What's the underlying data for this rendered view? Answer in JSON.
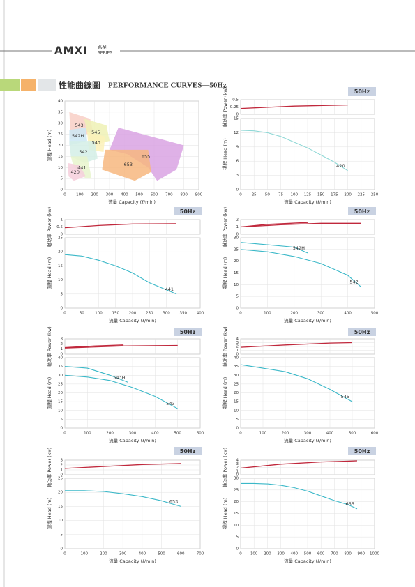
{
  "header": {
    "brand": "AMXI",
    "series_cn": "系列",
    "series_en": "SERIES"
  },
  "section_title": {
    "cn": "性能曲線圖",
    "en": "PERFORMANCE CURVES—50Hz"
  },
  "chart_data": [
    {
      "type": "region",
      "xlabel": "流量 Capacity (ℓ/min)",
      "ylabel": "揚程 Head (m)",
      "xlim": [
        0,
        900
      ],
      "xticks": [
        0,
        100,
        200,
        300,
        400,
        500,
        600,
        700,
        800,
        900
      ],
      "ylim": [
        0,
        40
      ],
      "yticks": [
        0,
        5,
        10,
        15,
        20,
        25,
        30,
        35,
        40
      ],
      "grid": true,
      "regions": [
        {
          "name": "655",
          "color": "#d9a3e3",
          "x": [
            360,
            800,
            750,
            620,
            560,
            420,
            300
          ],
          "y": [
            28,
            20,
            9,
            4,
            10,
            16,
            18
          ]
        },
        {
          "name": "653",
          "color": "#f7b77f",
          "x": [
            270,
            560,
            580,
            470,
            250
          ],
          "y": [
            18,
            18,
            8,
            4,
            9
          ]
        },
        {
          "name": "543H",
          "color": "#f8cfc6",
          "x": [
            30,
            170,
            190,
            40
          ],
          "y": [
            35,
            32,
            26,
            23
          ]
        },
        {
          "name": "545",
          "color": "#eef1b5",
          "x": [
            130,
            280,
            300,
            180,
            150
          ],
          "y": [
            32,
            29,
            22,
            20,
            26
          ]
        },
        {
          "name": "542H",
          "color": "#cde8f5",
          "x": [
            30,
            140,
            150,
            30
          ],
          "y": [
            27,
            28,
            22,
            20
          ]
        },
        {
          "name": "543",
          "color": "#fbf1b8",
          "x": [
            150,
            270,
            260,
            160
          ],
          "y": [
            26,
            24,
            17,
            18
          ]
        },
        {
          "name": "542",
          "color": "#d3efe6",
          "x": [
            30,
            200,
            220,
            130,
            40
          ],
          "y": [
            22,
            22,
            14,
            12,
            15
          ]
        },
        {
          "name": "441",
          "color": "#e8f5cd",
          "x": [
            40,
            150,
            180,
            140,
            60
          ],
          "y": [
            15,
            15,
            5,
            5,
            10
          ]
        },
        {
          "name": "420",
          "color": "#f6cfdc",
          "x": [
            20,
            100,
            140,
            60,
            25
          ],
          "y": [
            12,
            11,
            6,
            4,
            6
          ]
        }
      ]
    },
    {
      "type": "pump",
      "badge": "50Hz",
      "xlabel": "流量 Capacity (ℓ/min)",
      "xlim": [
        0,
        250
      ],
      "xticks": [
        0,
        25,
        50,
        75,
        100,
        125,
        150,
        175,
        200,
        225,
        250
      ],
      "power": {
        "ylabel": "軸功率 Power (kw)",
        "ylim": [
          0,
          0.5
        ],
        "yticks": [
          0,
          0.25,
          0.5
        ],
        "series": [
          {
            "color": "#c0283c",
            "x": [
              0,
              100,
              200
            ],
            "values": [
              0.2,
              0.28,
              0.32
            ]
          }
        ]
      },
      "head": {
        "ylabel": "揚程 Head (m)",
        "ylim": [
          0,
          15
        ],
        "yticks": [
          0,
          3,
          6,
          9,
          12,
          15
        ],
        "series": [
          {
            "name": "420",
            "color": "#8fd8d6",
            "x": [
              0,
              25,
              50,
              75,
              100,
              125,
              150,
              175,
              200
            ],
            "values": [
              12.5,
              12.4,
              12,
              11.2,
              10,
              8.8,
              7.3,
              5.8,
              4
            ]
          }
        ]
      }
    },
    {
      "type": "pump",
      "badge": "50Hz",
      "xlabel": "流量 Capacity (ℓ/min)",
      "xlim": [
        0,
        400
      ],
      "xticks": [
        0,
        50,
        100,
        150,
        200,
        250,
        300,
        350,
        400
      ],
      "power": {
        "ylabel": "軸功率 Power (kw)",
        "ylim": [
          0,
          1
        ],
        "yticks": [
          0,
          0.5,
          1
        ],
        "series": [
          {
            "color": "#c0283c",
            "x": [
              0,
              100,
              200,
              330
            ],
            "values": [
              0.45,
              0.6,
              0.7,
              0.72
            ]
          }
        ]
      },
      "head": {
        "ylabel": "揚程 Head (m)",
        "ylim": [
          0,
          25
        ],
        "yticks": [
          0,
          5,
          10,
          15,
          20,
          25
        ],
        "series": [
          {
            "name": "441",
            "color": "#3bb8c8",
            "x": [
              0,
              50,
              100,
              150,
              200,
              250,
              330
            ],
            "values": [
              19,
              18.5,
              17,
              15,
              12.5,
              9,
              5
            ]
          }
        ]
      }
    },
    {
      "type": "pump",
      "badge": "50Hz",
      "xlabel": "流量 Capacity (ℓ/min)",
      "xlim": [
        0,
        500
      ],
      "xticks": [
        0,
        100,
        200,
        300,
        400,
        500
      ],
      "power": {
        "ylabel": "軸功率 Power (kw)",
        "ylim": [
          0,
          2
        ],
        "yticks": [
          0,
          1,
          2
        ],
        "series": [
          {
            "color": "#c0283c",
            "x": [
              0,
              100,
              250
            ],
            "values": [
              1,
              1.35,
              1.6
            ]
          },
          {
            "color": "#c0283c",
            "x": [
              0,
              150,
              300,
              450
            ],
            "values": [
              1,
              1.3,
              1.5,
              1.5
            ]
          }
        ]
      },
      "head": {
        "ylabel": "揚程 Head (m)",
        "ylim": [
          0,
          30
        ],
        "yticks": [
          0,
          5,
          10,
          15,
          20,
          25,
          30
        ],
        "series": [
          {
            "name": "542H",
            "color": "#3bb8c8",
            "x": [
              0,
              100,
              200,
              250
            ],
            "values": [
              28,
              27,
              26,
              23.5
            ]
          },
          {
            "name": "542",
            "color": "#3bb8c8",
            "x": [
              0,
              100,
              200,
              300,
              400,
              450
            ],
            "values": [
              25,
              24,
              22,
              19,
              14,
              9
            ]
          }
        ]
      }
    },
    {
      "type": "pump",
      "badge": "50Hz",
      "xlabel": "流量 Capacity (ℓ/min)",
      "xlim": [
        0,
        600
      ],
      "xticks": [
        0,
        100,
        200,
        300,
        400,
        500,
        600
      ],
      "power": {
        "ylabel": "軸功率 Power (kw)",
        "ylim": [
          0,
          3
        ],
        "yticks": [
          0,
          1,
          2,
          3
        ],
        "series": [
          {
            "color": "#c0283c",
            "x": [
              0,
              130,
              260
            ],
            "values": [
              1.3,
              1.6,
              1.8
            ]
          },
          {
            "color": "#c0283c",
            "x": [
              0,
              250,
              500
            ],
            "values": [
              1.2,
              1.6,
              1.7
            ]
          }
        ]
      },
      "head": {
        "ylabel": "揚程 Head (m)",
        "ylim": [
          0,
          40
        ],
        "yticks": [
          0,
          5,
          10,
          15,
          20,
          25,
          30,
          35,
          40
        ],
        "series": [
          {
            "name": "543H",
            "color": "#3bb8c8",
            "x": [
              0,
              100,
              200,
              280
            ],
            "values": [
              35,
              34,
              30,
              26
            ]
          },
          {
            "name": "543",
            "color": "#3bb8c8",
            "x": [
              0,
              100,
              200,
              300,
              400,
              500
            ],
            "values": [
              30,
              29,
              27,
              23,
              18,
              11
            ]
          }
        ]
      }
    },
    {
      "type": "pump",
      "badge": "50Hz",
      "xlabel": "流量 Capacity (ℓ/min)",
      "xlim": [
        0,
        600
      ],
      "xticks": [
        0,
        100,
        200,
        300,
        400,
        500,
        600
      ],
      "power": {
        "ylabel": "軸功率 Power (kw)",
        "ylim": [
          0,
          4
        ],
        "yticks": [
          0,
          1,
          2,
          3,
          4
        ],
        "series": [
          {
            "color": "#c0283c",
            "x": [
              0,
              200,
              400,
              500
            ],
            "values": [
              1.8,
              2.4,
              2.9,
              3
            ]
          }
        ]
      },
      "head": {
        "ylabel": "揚程 Head (m)",
        "ylim": [
          0,
          40
        ],
        "yticks": [
          0,
          5,
          10,
          15,
          20,
          25,
          30,
          35,
          40
        ],
        "series": [
          {
            "name": "545",
            "color": "#3bb8c8",
            "x": [
              0,
              100,
              200,
              300,
              400,
              500
            ],
            "values": [
              36,
              34,
              32,
              28,
              22,
              15
            ]
          }
        ]
      }
    },
    {
      "type": "pump",
      "badge": "50Hz",
      "xlabel": "流量 Capacity (ℓ/min)",
      "xlim": [
        0,
        700
      ],
      "xticks": [
        0,
        100,
        200,
        300,
        400,
        500,
        600,
        700
      ],
      "power": {
        "ylabel": "軸功率 Power (kw)",
        "ylim": [
          0,
          3
        ],
        "yticks": [
          0,
          1,
          2,
          3
        ],
        "series": [
          {
            "color": "#c0283c",
            "x": [
              0,
              200,
              400,
              600
            ],
            "values": [
              1.3,
              1.7,
              2.1,
              2.3
            ]
          }
        ]
      },
      "head": {
        "ylabel": "揚程 Head (m)",
        "ylim": [
          0,
          25
        ],
        "yticks": [
          0,
          5,
          10,
          15,
          20,
          25
        ],
        "series": [
          {
            "name": "653",
            "color": "#3bb8c8",
            "x": [
              0,
              100,
              200,
              300,
              400,
              500,
              600
            ],
            "values": [
              20.6,
              20.6,
              20.3,
              19.5,
              18.5,
              17,
              15
            ]
          }
        ]
      }
    },
    {
      "type": "pump",
      "badge": "50Hz",
      "xlabel": "流量 Capacity (ℓ/min)",
      "xlim": [
        0,
        1000
      ],
      "xticks": [
        0,
        100,
        200,
        300,
        400,
        500,
        600,
        700,
        800,
        900,
        1000
      ],
      "power": {
        "ylabel": "軸功率 Power (kw)",
        "ylim": [
          0,
          4
        ],
        "yticks": [
          0,
          1,
          2,
          3,
          4
        ],
        "series": [
          {
            "color": "#c0283c",
            "x": [
              0,
              300,
              600,
              870
            ],
            "values": [
              1.8,
              2.9,
              3.5,
              3.8
            ]
          }
        ]
      },
      "head": {
        "ylabel": "揚程 Head (m)",
        "ylim": [
          0,
          30
        ],
        "yticks": [
          0,
          5,
          10,
          15,
          20,
          25,
          30
        ],
        "series": [
          {
            "name": "655",
            "color": "#3bb8c8",
            "x": [
              0,
              100,
              200,
              300,
              400,
              500,
              600,
              700,
              800,
              870
            ],
            "values": [
              27.8,
              27.8,
              27.6,
              27,
              26,
              24.5,
              22.5,
              20.5,
              18.8,
              17
            ]
          }
        ]
      }
    }
  ]
}
